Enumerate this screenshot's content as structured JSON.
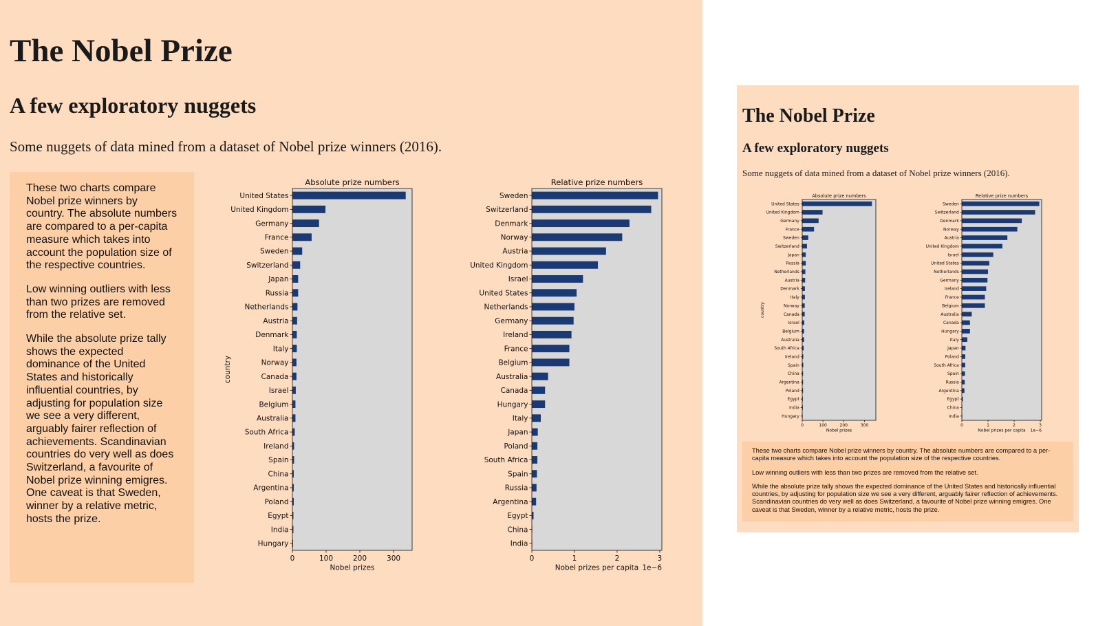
{
  "page": {
    "title": "The Nobel Prize",
    "subtitle": "A few exploratory nuggets",
    "intro": "Some nuggets of data mined from a dataset of Nobel prize winners (2016).",
    "notes": [
      "These two charts compare Nobel prize winners by country. The absolute numbers are compared to a per-capita measure which takes into account the population size of the respective countries.",
      "Low winning outliers with less than two prizes are removed from the relative set.",
      "While the absolute prize tally shows the expected dominance of the United States and historically influential countries, by adjusting for population size we see a very different, arguably fairer reflection of achievements. Scandinavian countries do very well as does Switzerland, a favourite of Nobel prize winning emigres. One caveat is that Sweden, winner by a relative metric, hosts the prize."
    ]
  },
  "colors": {
    "panel_bg": "#fedcc0",
    "note_bg": "#fdcfa6",
    "plot_bg": "#d8d8d8",
    "bar": "#1b3a73"
  },
  "chart_data": [
    {
      "type": "bar",
      "orientation": "horizontal",
      "title": "Absolute prize numbers",
      "xlabel": "Nobel prizes",
      "ylabel": "country",
      "xlim": [
        0,
        355
      ],
      "xticks": [
        0,
        100,
        200,
        300
      ],
      "categories": [
        "United States",
        "United Kingdom",
        "Germany",
        "France",
        "Sweden",
        "Switzerland",
        "Japan",
        "Russia",
        "Netherlands",
        "Austria",
        "Denmark",
        "Italy",
        "Norway",
        "Canada",
        "Israel",
        "Belgium",
        "Australia",
        "South Africa",
        "Ireland",
        "Spain",
        "China",
        "Argentina",
        "Poland",
        "Egypt",
        "India",
        "Hungary"
      ],
      "values": [
        336,
        98,
        79,
        57,
        29,
        23,
        17,
        17,
        15,
        14,
        13,
        13,
        12,
        12,
        10,
        9,
        9,
        7,
        5,
        5,
        4,
        4,
        4,
        3,
        3,
        2
      ]
    },
    {
      "type": "bar",
      "orientation": "horizontal",
      "title": "Relative prize numbers",
      "xlabel": "Nobel prizes per capita",
      "x_offset_label": "1e−6",
      "xlim": [
        0,
        3.05
      ],
      "xticks": [
        0,
        1,
        2,
        3
      ],
      "categories": [
        "Sweden",
        "Switzerland",
        "Denmark",
        "Norway",
        "Austria",
        "United Kingdom",
        "Israel",
        "United States",
        "Netherlands",
        "Germany",
        "Ireland",
        "France",
        "Belgium",
        "Australia",
        "Canada",
        "Hungary",
        "Italy",
        "Japan",
        "Poland",
        "South Africa",
        "Spain",
        "Russia",
        "Argentina",
        "Egypt",
        "China",
        "India"
      ],
      "values": [
        2.96,
        2.8,
        2.29,
        2.12,
        1.74,
        1.55,
        1.2,
        1.05,
        1.0,
        0.98,
        0.93,
        0.88,
        0.88,
        0.38,
        0.31,
        0.31,
        0.21,
        0.14,
        0.13,
        0.13,
        0.12,
        0.11,
        0.1,
        0.04,
        0.003,
        0.002
      ]
    }
  ]
}
